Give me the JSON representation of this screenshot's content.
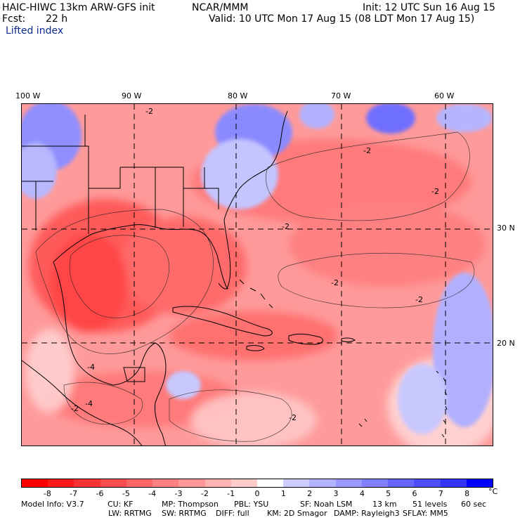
{
  "header": {
    "model": "HAIC-HIWC 13km ARW-GFS init",
    "org": "NCAR/MMM",
    "init": "Init: 12 UTC Sun 16 Aug 15",
    "fcst_label": "Fcst:",
    "fcst_value": "22 h",
    "valid": "Valid: 10 UTC Mon 17 Aug 15 (08 LDT Mon 17 Aug 15)",
    "field": "Lifted index"
  },
  "map": {
    "lon_labels": [
      "100 W",
      "90 W",
      "80 W",
      "70 W",
      "60 W"
    ],
    "lat_labels": [
      "30 N",
      "20 N"
    ],
    "contour_labels": [
      "-2",
      "-2",
      "-2",
      "-2",
      "-2",
      "-4",
      "-4",
      "-2",
      "-2",
      "-2"
    ]
  },
  "colorbar": {
    "ticks": [
      "-8",
      "-7",
      "-6",
      "-5",
      "-4",
      "-3",
      "-2",
      "-1",
      "0",
      "1",
      "2",
      "3",
      "4",
      "5",
      "6",
      "7",
      "8"
    ],
    "unit": "°C",
    "colors": [
      "#ff0000",
      "#ff1a1a",
      "#ff3333",
      "#ff4d4d",
      "#ff6666",
      "#ff8080",
      "#ff9999",
      "#ffb3b3",
      "#ffcccc",
      "#ffffff",
      "#ccccff",
      "#b3b3ff",
      "#9999ff",
      "#8080ff",
      "#6666ff",
      "#4d4dff",
      "#3333ff",
      "#0000ff"
    ]
  },
  "model_info": {
    "line1": [
      "Model Info: V3.7",
      "CU: KF",
      "MP: Thompson",
      "PBL: YSU",
      "SF: Noah LSM",
      "13 km",
      "51 levels",
      "60 sec"
    ],
    "line2": [
      "LW: RRTMG",
      "SW: RRTMG",
      "DIFF: full",
      "KM: 2D Smagor",
      "DAMP: Rayleigh3",
      "SFLAY: MM5"
    ]
  }
}
